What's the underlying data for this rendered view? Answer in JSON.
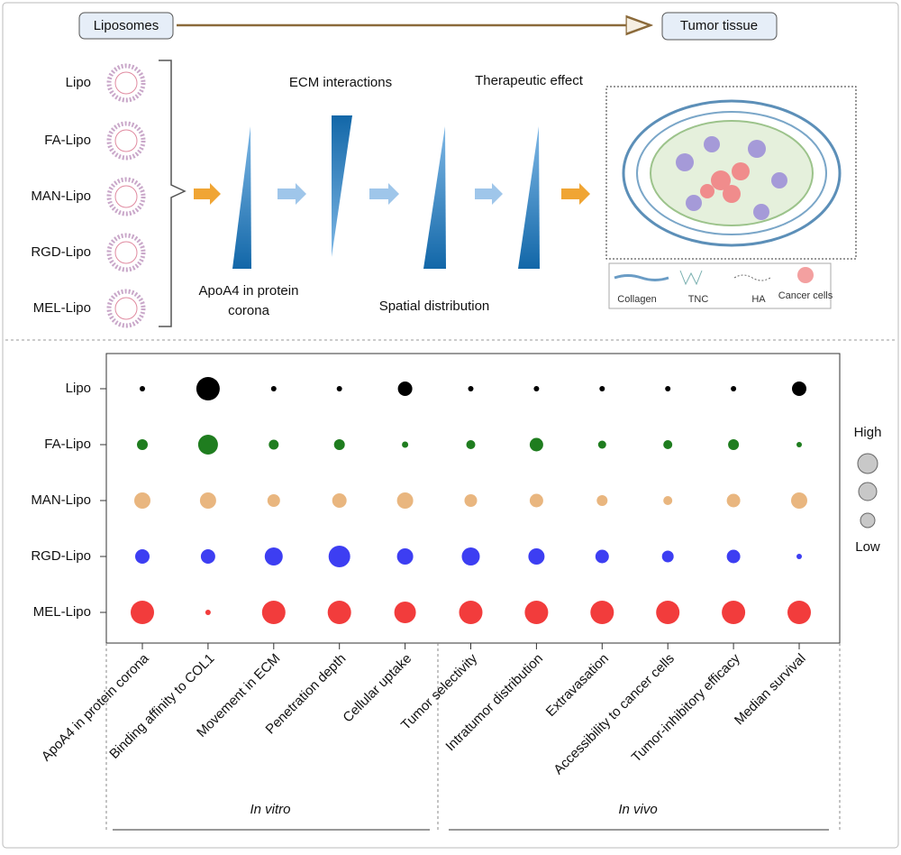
{
  "diagram": {
    "start_label": "Liposomes",
    "end_label": "Tumor tissue",
    "formulations": [
      "Lipo",
      "FA-Lipo",
      "MAN-Lipo",
      "RGD-Lipo",
      "MEL-Lipo"
    ],
    "stage_top": [
      "ECM interactions",
      "Therapeutic effect"
    ],
    "stage_bottom": [
      "ApoA4 in protein corona",
      "Spatial distribution"
    ],
    "tumor_legend": [
      "Collagen",
      "TNC",
      "HA",
      "Cancer cells"
    ]
  },
  "chart_data": {
    "type": "bubble",
    "categories": [
      "ApoA4 in protein corona",
      "Binding affinity to COL1",
      "Movement in ECM",
      "Penetration depth",
      "Cellular uptake",
      "Tumor selectivity",
      "Intratumor distribution",
      "Extravasation",
      "Accessibility to cancer cells",
      "Tumor-inhibitory efficacy",
      "Median survival"
    ],
    "series": [
      {
        "name": "Lipo",
        "color": "#000000",
        "values": [
          6,
          26,
          6,
          6,
          16,
          6,
          6,
          6,
          6,
          6,
          16
        ]
      },
      {
        "name": "FA-Lipo",
        "color": "#1f7d1f",
        "values": [
          12,
          22,
          11,
          12,
          7,
          10,
          15,
          9,
          10,
          12,
          6
        ]
      },
      {
        "name": "MAN-Lipo",
        "color": "#e9b67f",
        "values": [
          18,
          18,
          14,
          16,
          18,
          14,
          15,
          12,
          10,
          15,
          18
        ]
      },
      {
        "name": "RGD-Lipo",
        "color": "#3d3ef2",
        "values": [
          16,
          16,
          20,
          24,
          18,
          20,
          18,
          15,
          13,
          15,
          6
        ]
      },
      {
        "name": "MEL-Lipo",
        "color": "#f23c3c",
        "values": [
          26,
          6,
          26,
          26,
          24,
          26,
          26,
          26,
          26,
          26,
          26
        ]
      }
    ],
    "size_legend": [
      "High",
      "Low"
    ],
    "group_labels": [
      "In vitro",
      "In vivo"
    ]
  }
}
